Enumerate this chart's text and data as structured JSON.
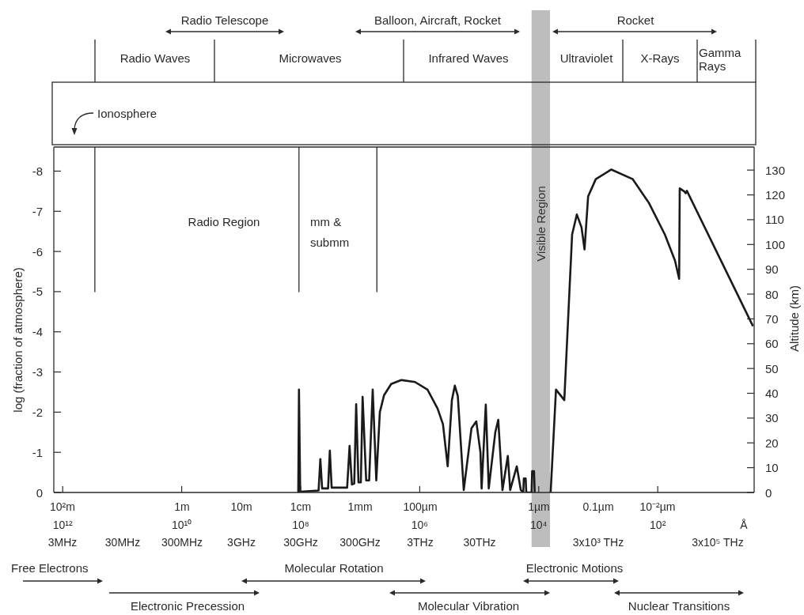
{
  "chart_data": {
    "type": "line",
    "ylabel": "log (fraction of atmosphere)",
    "y2label": "Altitude (km)",
    "xlabel": "Å",
    "log": "x",
    "x": [
      110000000.0,
      107000000.0,
      102000000.0,
      50100000.0,
      46800000.0,
      43700000.0,
      34700000.0,
      32400000.0,
      30200000.0,
      16600000.0,
      15100000.0,
      13800000.0,
      12600000.0,
      11700000.0,
      10700000.0,
      9770000.0,
      9120000.0,
      7940000.0,
      7080000.0,
      6170000.0,
      5370000.0,
      4680000.0,
      3980000.0,
      3020000.0,
      2040000.0,
      1200000.0,
      741000.0,
      501000.0,
      407000.0,
      339000.0,
      288000.0,
      257000.0,
      229000.0,
      182000.0,
      135000.0,
      112000.0,
      95500.0,
      91200.0,
      77600.0,
      69200.0,
      53700.0,
      47900.0,
      40700.0,
      33100.0,
      30200.0,
      23400.0,
      20000.0,
      18200.0,
      17800.0,
      16600.0,
      16200.0,
      13200.0,
      12900.0,
      12000.0,
      11700.0,
      9550.0,
      6310.0,
      5130.0,
      3720.0,
      2750.0,
      2290.0,
      1910.0,
      1700.0,
      1480.0,
      1100.0,
      603,
      263,
      141,
      75.9,
      51.3,
      43.7,
      42.7,
      35.5,
      33.9,
      32.4,
      2.51
    ],
    "series": [
      {
        "color": "#1a1a1a",
        "values": [
          0,
          -2.56,
          -0.02,
          -0.05,
          -0.83,
          -0.1,
          -0.1,
          -1.04,
          -0.12,
          -0.12,
          -1.16,
          -0.2,
          -0.22,
          -2.2,
          -0.25,
          -0.25,
          -2.38,
          -0.3,
          -0.3,
          -2.56,
          -0.3,
          -2.0,
          -2.42,
          -2.7,
          -2.8,
          -2.75,
          -2.56,
          -2.09,
          -1.7,
          -0.65,
          -2.3,
          -2.66,
          -2.4,
          -0.06,
          -1.6,
          -1.77,
          -1.0,
          -0.1,
          -2.19,
          -0.1,
          -1.5,
          -1.81,
          -0.06,
          -0.91,
          -0.06,
          -0.65,
          -0.06,
          0,
          -0.35,
          -0.35,
          0,
          0,
          -0.53,
          -0.53,
          0,
          null,
          0,
          -2.56,
          -2.3,
          -6.42,
          -6.92,
          -6.6,
          -6.05,
          -7.37,
          -7.8,
          -8.04,
          -7.8,
          -7.21,
          -6.42,
          -5.77,
          -5.32,
          -7.57,
          -7.49,
          -7.45,
          -7.51,
          -4.14
        ]
      }
    ],
    "xlim": [
      1410000000000.0,
      2.4
    ],
    "xticks": [
      {
        "value": 1000000000000.0,
        "label": "10¹²"
      },
      {
        "value": 10000000000.0,
        "label": "10¹⁰"
      },
      {
        "value": 100000000.0,
        "label": "10⁸"
      },
      {
        "value": 1000000.0,
        "label": "10⁶"
      },
      {
        "value": 10000.0,
        "label": "10⁴"
      },
      {
        "value": 100.0,
        "label": "10²"
      }
    ],
    "ylim": [
      0,
      -8.6
    ],
    "yticks": [
      0,
      -1,
      -2,
      -3,
      -4,
      -5,
      -6,
      -7,
      -8
    ],
    "y2lim": [
      0,
      139.3
    ],
    "y2ticks": [
      0,
      10,
      20,
      30,
      40,
      50,
      60,
      70,
      80,
      90,
      100,
      110,
      120,
      130
    ],
    "bands": [
      {
        "axis": "x",
        "from": 13200.0,
        "to": 6460.0,
        "label": "Visible Region",
        "color": "#bdbdbd"
      }
    ],
    "ref_lines": [
      {
        "axis": "x",
        "value": 288000000000.0
      },
      {
        "axis": "x",
        "value": 107000000.0
      },
      {
        "axis": "x",
        "value": 5250000.0
      }
    ],
    "annotations": [
      "Radio Telescope",
      "Balloon, Aircraft, Rocket",
      "Rocket",
      "Radio Waves",
      "Microwaves",
      "Infrared Waves",
      "Ultraviolet",
      "X-Rays",
      "Gamma Rays",
      "Ionosphere",
      "Radio Region",
      "mm & submm",
      "Free Electrons",
      "Molecular Rotation",
      "Electronic Motions",
      "Electronic Precession",
      "Molecular Vibration",
      "Nuclear Transitions",
      "10²m",
      "1m",
      "10m",
      "1cm",
      "1mm",
      "100µm",
      "1µm",
      "0.1µm",
      "10⁻²µm",
      "3MHz",
      "30MHz",
      "300MHz",
      "3GHz",
      "30GHz",
      "300GHz",
      "3THz",
      "30THz",
      "3x10³ THz",
      "3x10⁵ THz"
    ]
  }
}
